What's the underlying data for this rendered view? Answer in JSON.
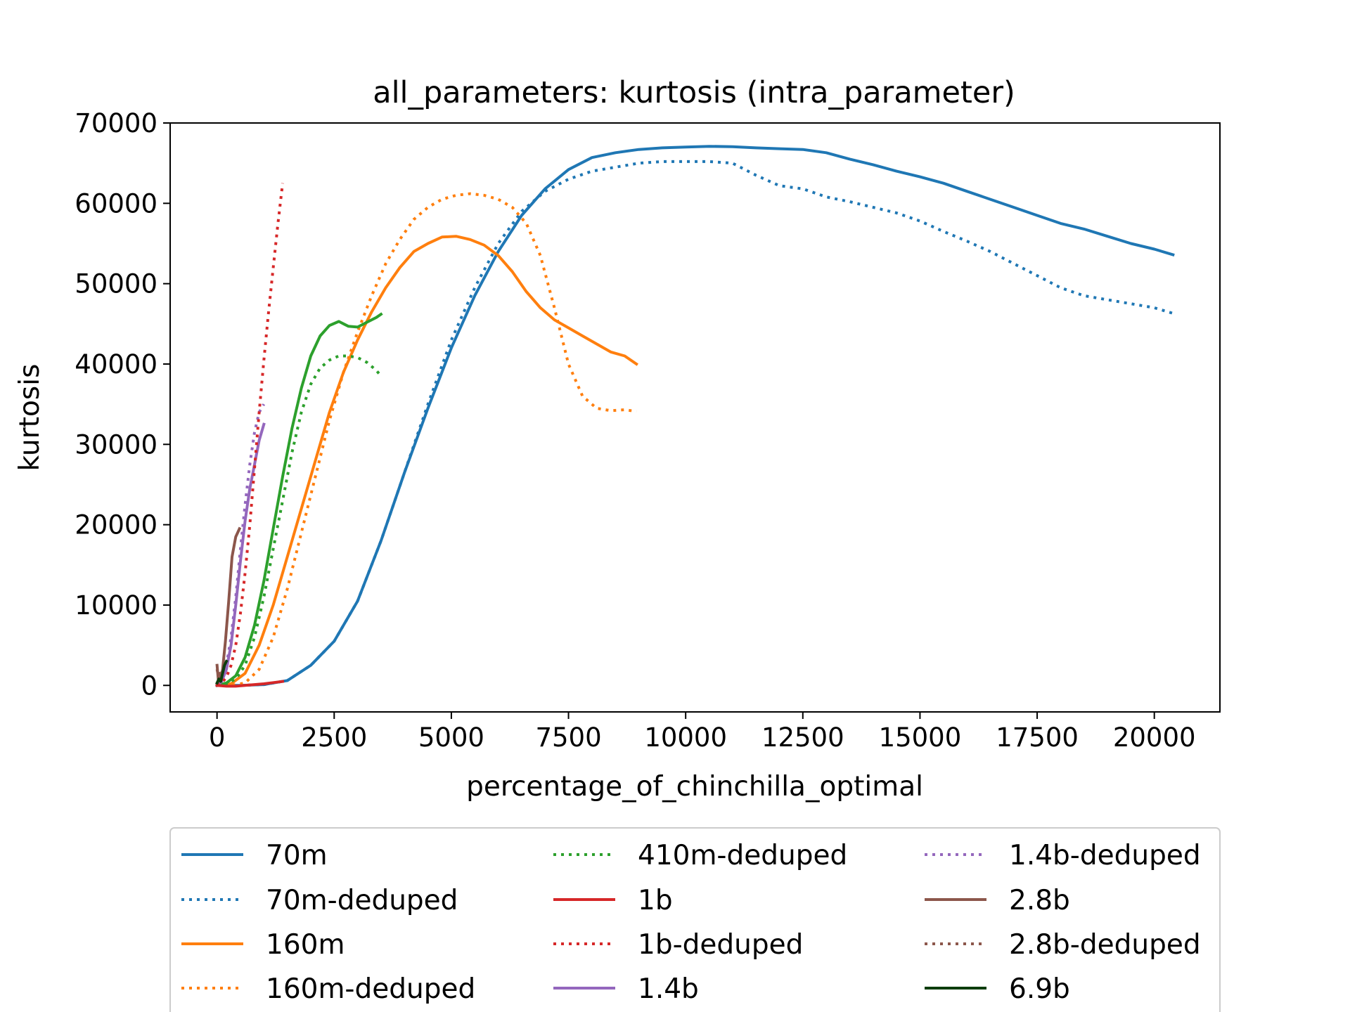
{
  "chart_data": {
    "type": "line",
    "title": "all_parameters: kurtosis (intra_parameter)",
    "xlabel": "percentage_of_chinchilla_optimal",
    "ylabel": "kurtosis",
    "xlim": [
      -1000,
      21400
    ],
    "ylim": [
      -3300,
      70000
    ],
    "xticks": [
      0,
      2500,
      5000,
      7500,
      10000,
      12500,
      15000,
      17500,
      20000
    ],
    "xtick_labels": [
      "0",
      "2500",
      "5000",
      "7500",
      "10000",
      "12500",
      "15000",
      "17500",
      "20000"
    ],
    "yticks": [
      0,
      10000,
      20000,
      30000,
      40000,
      50000,
      60000,
      70000
    ],
    "ytick_labels": [
      "0",
      "10000",
      "20000",
      "30000",
      "40000",
      "50000",
      "60000",
      "70000"
    ],
    "grid": false,
    "legend_position": "bottom-outside",
    "series": [
      {
        "name": "70m",
        "color": "#1f77b4",
        "style": "solid",
        "x": [
          0,
          500,
          1000,
          1500,
          2000,
          2500,
          3000,
          3500,
          4000,
          4500,
          5000,
          5500,
          6000,
          6500,
          7000,
          7500,
          8000,
          8500,
          9000,
          9500,
          10000,
          10500,
          11000,
          11500,
          12000,
          12500,
          13000,
          13500,
          14000,
          14500,
          15000,
          15500,
          16000,
          16500,
          17000,
          17500,
          18000,
          18500,
          19000,
          19500,
          20000,
          20400
        ],
        "y": [
          0,
          0,
          100,
          600,
          2500,
          5500,
          10500,
          18000,
          26500,
          34500,
          42000,
          48500,
          54000,
          58500,
          61800,
          64200,
          65700,
          66300,
          66700,
          66900,
          67000,
          67100,
          67050,
          66900,
          66800,
          66700,
          66300,
          65500,
          64800,
          64000,
          63300,
          62500,
          61500,
          60500,
          59500,
          58500,
          57500,
          56800,
          55900,
          55000,
          54300,
          53600
        ]
      },
      {
        "name": "70m-deduped",
        "color": "#1f77b4",
        "style": "dotted",
        "x": [
          0,
          500,
          1000,
          1500,
          2000,
          2500,
          3000,
          3500,
          4000,
          4500,
          5000,
          5500,
          6000,
          6500,
          7000,
          7500,
          8000,
          8500,
          9000,
          9500,
          10000,
          10500,
          11000,
          11500,
          12000,
          12500,
          13000,
          13500,
          14000,
          14500,
          15000,
          15500,
          16000,
          16500,
          17000,
          17500,
          18000,
          18500,
          19000,
          19500,
          20000,
          20400
        ],
        "y": [
          0,
          0,
          100,
          600,
          2500,
          5500,
          10500,
          18000,
          26500,
          35000,
          43000,
          49500,
          55000,
          59000,
          61500,
          63000,
          64000,
          64500,
          65000,
          65200,
          65200,
          65200,
          65000,
          63500,
          62200,
          61800,
          60800,
          60200,
          59500,
          58800,
          57800,
          56500,
          55300,
          54000,
          52500,
          51000,
          49500,
          48500,
          48000,
          47500,
          47000,
          46300
        ]
      },
      {
        "name": "160m",
        "color": "#ff7f0e",
        "style": "solid",
        "x": [
          0,
          300,
          600,
          900,
          1200,
          1500,
          1800,
          2100,
          2400,
          2700,
          3000,
          3300,
          3600,
          3900,
          4200,
          4500,
          4800,
          5100,
          5400,
          5700,
          6000,
          6300,
          6600,
          6900,
          7200,
          7500,
          7800,
          8100,
          8400,
          8700,
          8950
        ],
        "y": [
          0,
          200,
          1500,
          5000,
          10000,
          16000,
          22000,
          28000,
          34000,
          39000,
          43000,
          46500,
          49500,
          52000,
          54000,
          55000,
          55800,
          55900,
          55500,
          54800,
          53500,
          51500,
          49000,
          47000,
          45500,
          44500,
          43500,
          42500,
          41500,
          41000,
          40000
        ]
      },
      {
        "name": "160m-deduped",
        "color": "#ff7f0e",
        "style": "dotted",
        "x": [
          0,
          300,
          600,
          900,
          1200,
          1500,
          1800,
          2100,
          2400,
          2700,
          3000,
          3300,
          3600,
          3900,
          4200,
          4500,
          4800,
          5100,
          5400,
          5700,
          6000,
          6300,
          6600,
          6900,
          7200,
          7500,
          7800,
          8100,
          8400,
          8700,
          8950
        ],
        "y": [
          0,
          0,
          300,
          2000,
          6000,
          12000,
          19000,
          26000,
          33000,
          39000,
          44000,
          48500,
          52500,
          55500,
          58000,
          59500,
          60500,
          61000,
          61200,
          61000,
          60500,
          59500,
          57500,
          53500,
          47000,
          40000,
          36000,
          34500,
          34200,
          34300,
          34100
        ]
      },
      {
        "name": "410m-deduped",
        "color": "#2ca02c",
        "style": "dotted",
        "x": [
          0,
          200,
          400,
          600,
          800,
          1000,
          1200,
          1400,
          1600,
          1800,
          2000,
          2200,
          2400,
          2600,
          2800,
          3000,
          3200,
          3400,
          3500
        ],
        "y": [
          0,
          200,
          800,
          2500,
          6000,
          11000,
          17000,
          23000,
          29000,
          34000,
          37500,
          39500,
          40500,
          41000,
          41000,
          40800,
          40200,
          39200,
          38500
        ]
      },
      {
        "name": "410m",
        "color": "#2ca02c",
        "style": "solid",
        "x": [
          0,
          200,
          400,
          600,
          800,
          1000,
          1200,
          1400,
          1600,
          1800,
          2000,
          2200,
          2400,
          2600,
          2700,
          2800,
          3000,
          3200,
          3400,
          3500
        ],
        "y": [
          0,
          300,
          1200,
          3500,
          7500,
          13000,
          19500,
          26000,
          32000,
          37000,
          41000,
          43500,
          44800,
          45300,
          45000,
          44700,
          44600,
          45200,
          45800,
          46200
        ]
      },
      {
        "name": "1b",
        "color": "#d62728",
        "style": "solid",
        "x": [
          0,
          200,
          400,
          600,
          800,
          1000,
          1200,
          1400
        ],
        "y": [
          0,
          -100,
          -100,
          0,
          100,
          200,
          350,
          500
        ]
      },
      {
        "name": "1b-deduped",
        "color": "#d62728",
        "style": "dotted",
        "x": [
          0,
          100,
          200,
          300,
          400,
          500,
          600,
          700,
          800,
          900,
          1000,
          1100,
          1200,
          1300,
          1400
        ],
        "y": [
          0,
          300,
          1000,
          2500,
          5000,
          9000,
          14000,
          20000,
          27000,
          34000,
          40500,
          46500,
          52000,
          57500,
          62500
        ]
      },
      {
        "name": "1.4b",
        "color": "#9467bd",
        "style": "solid",
        "x": [
          0,
          100,
          200,
          300,
          400,
          500,
          600,
          700,
          800,
          900,
          1000
        ],
        "y": [
          0,
          500,
          2000,
          5000,
          10000,
          15500,
          20500,
          24500,
          27500,
          30500,
          32500
        ]
      },
      {
        "name": "1.4b-deduped",
        "color": "#9467bd",
        "style": "dotted",
        "x": [
          0,
          100,
          200,
          300,
          400,
          500,
          600,
          700,
          800,
          900,
          1000
        ],
        "y": [
          0,
          500,
          2500,
          6000,
          11000,
          17000,
          22500,
          27500,
          31500,
          34000,
          35000
        ]
      },
      {
        "name": "2.8b",
        "color": "#8c564b",
        "style": "solid",
        "x": [
          0,
          30,
          60,
          90,
          120,
          180,
          250,
          320,
          400,
          480
        ],
        "y": [
          2500,
          500,
          1500,
          800,
          2000,
          5500,
          10500,
          16000,
          18500,
          19500
        ]
      },
      {
        "name": "2.8b-deduped",
        "color": "#8c564b",
        "style": "dotted",
        "x": [
          0,
          40,
          80,
          120,
          160,
          200
        ],
        "y": [
          2000,
          800,
          1200,
          2000,
          2600,
          3000
        ]
      },
      {
        "name": "6.9b",
        "color": "#0c3d0c",
        "style": "solid",
        "x": [
          0,
          40,
          80,
          120,
          160,
          200
        ],
        "y": [
          300,
          800,
          500,
          1500,
          2500,
          3000
        ]
      }
    ],
    "legend_order": [
      "70m",
      "70m-deduped",
      "160m",
      "160m-deduped",
      "410m-deduped",
      "1b",
      "1b-deduped",
      "1.4b",
      "1.4b-deduped",
      "2.8b",
      "2.8b-deduped",
      "6.9b"
    ]
  }
}
